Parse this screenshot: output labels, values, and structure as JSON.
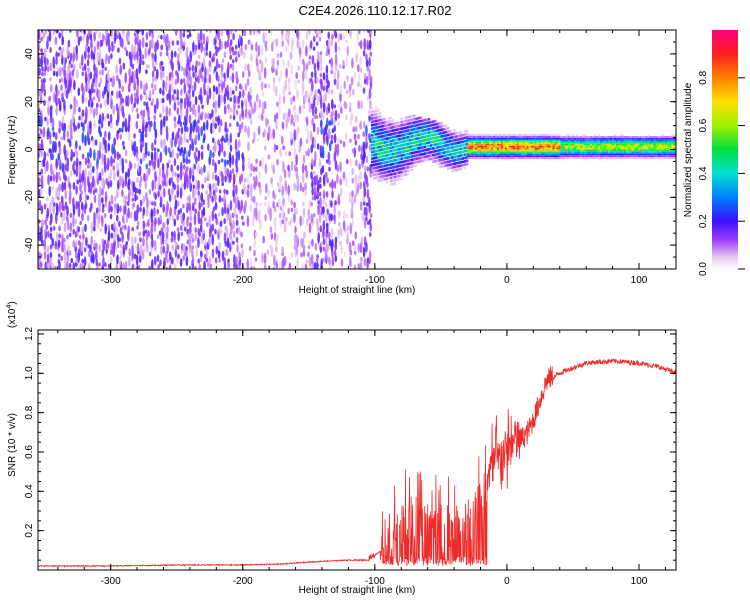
{
  "title": "C2E4.2026.110.12.17.R02",
  "chart_data": [
    {
      "type": "heatmap",
      "title": "C2E4.2026.110.12.17.R02",
      "xlabel": "Height of straight line (km)",
      "ylabel": "Frequency (Hz)",
      "xlim": [
        -355,
        128
      ],
      "ylim": [
        -50,
        50
      ],
      "xticks": [
        -300,
        -200,
        -100,
        0,
        100
      ],
      "yticks": [
        -40,
        -20,
        0,
        20,
        40
      ],
      "colorbar": {
        "label": "Normalized spectral amplitude",
        "range": [
          0,
          1
        ],
        "ticks": [
          "0.0",
          "0.2",
          "0.4",
          "0.6",
          "0.8"
        ],
        "tick_values": [
          0.0,
          0.2,
          0.4,
          0.6,
          0.8
        ]
      },
      "regions": [
        {
          "x": [
            -355,
            -103
          ],
          "description": "broadband noise, amplitude ~0.05-0.2 across all frequencies"
        },
        {
          "x": [
            -103,
            -30
          ],
          "center_freq": 2,
          "spread_hz": 10,
          "peak_amplitude": 0.45
        },
        {
          "x": [
            -30,
            128
          ],
          "center_freq": 1,
          "spread_hz": 3,
          "peak_amplitude": 0.95
        }
      ]
    },
    {
      "type": "line",
      "xlabel": "Height of straight line (km)",
      "ylabel": "SNR (10 * v/v)",
      "y_multiplier": "(x10^4)",
      "xlim": [
        -355,
        128
      ],
      "ylim": [
        0,
        1.22
      ],
      "xticks": [
        -300,
        -200,
        -100,
        0,
        100
      ],
      "yticks": [
        0.2,
        0.4,
        0.6,
        0.8,
        1.0,
        1.2
      ],
      "ytick_labels": [
        "0.2",
        "0.4",
        "0.6",
        "0.8",
        "1.0",
        "1.2"
      ],
      "series": [
        {
          "name": "SNR",
          "color": "#ee2b2b",
          "x": [
            -355,
            -300,
            -250,
            -200,
            -170,
            -150,
            -120,
            -105,
            -95,
            -85,
            -70,
            -50,
            -35,
            -25,
            -15,
            -5,
            5,
            15,
            20,
            25,
            30,
            40,
            60,
            80,
            100,
            115,
            128
          ],
          "y": [
            0.02,
            0.02,
            0.025,
            0.025,
            0.03,
            0.04,
            0.05,
            0.05,
            0.1,
            0.2,
            0.25,
            0.2,
            0.2,
            0.25,
            0.45,
            0.55,
            0.62,
            0.68,
            0.75,
            0.85,
            0.95,
            1.0,
            1.05,
            1.06,
            1.05,
            1.03,
            1.0
          ]
        }
      ]
    }
  ]
}
